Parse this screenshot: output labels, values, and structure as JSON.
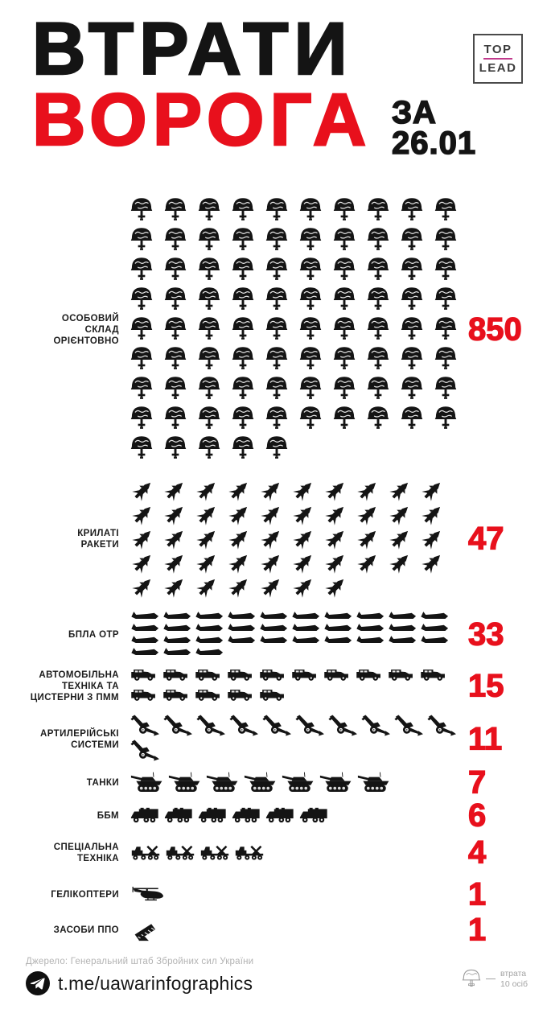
{
  "header": {
    "title_line1": "ВТРАТИ",
    "title_line2": "ВОРОГА",
    "date": "ЗА\n26.01",
    "logo": {
      "top": "TOP",
      "bottom": "LEAD"
    }
  },
  "chart_data": {
    "type": "pictogram-bar",
    "title": "ВТРАТИ ВОРОГА ЗА 26.01",
    "unit_note": "1 helmet icon = 10 persons; all other icons = 1 unit",
    "legend": {
      "icon": "helmet-outline-icon",
      "label": "втрата\n10 осіб"
    },
    "max_icons_per_line": 10,
    "categories": [
      "ОСОБОВИЙ СКЛАД ОРІЄНТОВНО",
      "КРИЛАТІ РАКЕТИ",
      "БПЛА ОТР",
      "АВТОМОБІЛЬНА ТЕХНІКА ТА ЦИСТЕРНИ З ПММ",
      "АРТИЛЕРІЙСЬКІ СИСТЕМИ",
      "ТАНКИ",
      "ББМ",
      "СПЕЦІАЛЬНА ТЕХНІКА",
      "ГЕЛІКОПТЕРИ",
      "ЗАСОБИ ППО"
    ],
    "values": [
      850,
      47,
      33,
      15,
      11,
      7,
      6,
      4,
      1,
      1
    ],
    "rows": [
      {
        "label": "ОСОБОВИЙ СКЛАД ОРІЄНТОВНО",
        "label_lines": [
          "ОСОБОВИЙ",
          "СКЛАД",
          "ОРІЄНТОВНО"
        ],
        "value": 850,
        "icon": "helmet",
        "icon_count": 85
      },
      {
        "label": "КРИЛАТІ РАКЕТИ",
        "label_lines": [
          "КРИЛАТІ",
          "РАКЕТИ"
        ],
        "value": 47,
        "icon": "cruise-missile",
        "icon_count": 47
      },
      {
        "label": "БПЛА ОТР",
        "label_lines": [
          "БПЛА ОТР"
        ],
        "value": 33,
        "icon": "uav",
        "icon_count": 33
      },
      {
        "label": "АВТОМОБІЛЬНА ТЕХНІКА ТА ЦИСТЕРНИ З ПММ",
        "label_lines": [
          "АВТОМОБІЛЬНА",
          "ТЕХНІКА ТА",
          "ЦИСТЕРНИ З ПММ"
        ],
        "value": 15,
        "icon": "truck",
        "icon_count": 15
      },
      {
        "label": "АРТИЛЕРІЙСЬКІ СИСТЕМИ",
        "label_lines": [
          "АРТИЛЕРІЙСЬКІ",
          "СИСТЕМИ"
        ],
        "value": 11,
        "icon": "artillery",
        "icon_count": 11
      },
      {
        "label": "ТАНКИ",
        "label_lines": [
          "ТАНКИ"
        ],
        "value": 7,
        "icon": "tank",
        "icon_count": 7
      },
      {
        "label": "ББМ",
        "label_lines": [
          "ББМ"
        ],
        "value": 6,
        "icon": "apc",
        "icon_count": 6
      },
      {
        "label": "СПЕЦІАЛЬНА ТЕХНІКА",
        "label_lines": [
          "СПЕЦІАЛЬНА",
          "ТЕХНІКА"
        ],
        "value": 4,
        "icon": "special-vehicle",
        "icon_count": 4
      },
      {
        "label": "ГЕЛІКОПТЕРИ",
        "label_lines": [
          "ГЕЛІКОПТЕРИ"
        ],
        "value": 1,
        "icon": "helicopter",
        "icon_count": 1
      },
      {
        "label": "ЗАСОБИ ППО",
        "label_lines": [
          "ЗАСОБИ ППО"
        ],
        "value": 1,
        "icon": "air-defense",
        "icon_count": 1
      }
    ]
  },
  "footer": {
    "source": "Джерело: Генеральний штаб Збройних сил України",
    "telegram_link": "t.me/uawarinfographics",
    "legend_label": "втрата\n10 осіб"
  },
  "colors": {
    "accent_red": "#e8101c",
    "ink_black": "#141414",
    "muted_gray": "#a3a3a3",
    "logo_magenta": "#c13a8c"
  }
}
